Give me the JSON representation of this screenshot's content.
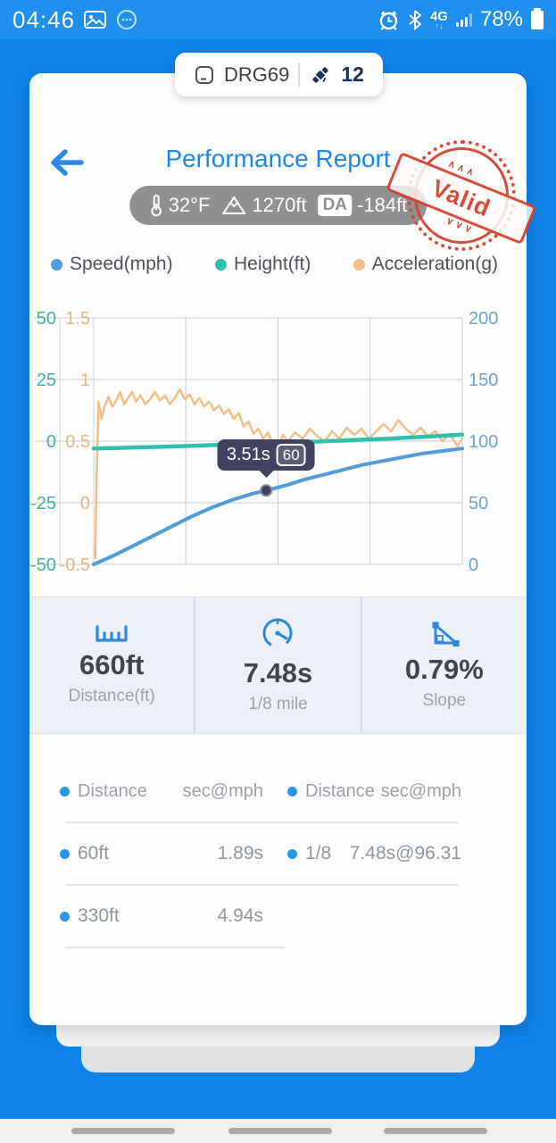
{
  "status_bar": {
    "time": "04:46",
    "network": "4G",
    "battery_percent": "78%",
    "icons": [
      "image-icon",
      "circle-badge-icon",
      "alarm-icon",
      "bluetooth-icon",
      "signal-icon",
      "battery-icon"
    ]
  },
  "tab": {
    "device_id": "DRG69",
    "run_count": "12",
    "icons": [
      "device-icon",
      "satellite-icon"
    ]
  },
  "header": {
    "title": "Performance Report",
    "conditions": {
      "temperature": "32°F",
      "altitude": "1270ft",
      "da_label": "DA",
      "density_altitude": "-184ft"
    },
    "stamp": "Valid"
  },
  "chart_data": {
    "type": "line",
    "x_range": [
      0,
      7.5
    ],
    "grid": true,
    "legend": [
      {
        "label": "Speed(mph)",
        "color": "#4f9bda"
      },
      {
        "label": "Height(ft)",
        "color": "#2fbfae"
      },
      {
        "label": "Acceleration(g)",
        "color": "#f3bd85"
      }
    ],
    "axes": {
      "height": {
        "label_color": "#3fb3a3",
        "ticks": [
          "50",
          "25",
          "0",
          "-25",
          "-50"
        ],
        "range": [
          -50,
          50
        ],
        "side": "left-outer"
      },
      "accel": {
        "label_color": "#e9b57e",
        "ticks": [
          "1.5",
          "1",
          "0.5",
          "0",
          "-0.5"
        ],
        "range": [
          -0.5,
          1.5
        ],
        "side": "left-inner"
      },
      "speed": {
        "label_color": "#6fa3cd",
        "ticks": [
          "200",
          "150",
          "100",
          "50",
          "0"
        ],
        "range": [
          0,
          200
        ],
        "side": "right"
      }
    },
    "series": [
      {
        "name": "Speed(mph)",
        "axis": "speed",
        "color": "#4f9bda",
        "width": 4,
        "points": [
          [
            0,
            0
          ],
          [
            0.4,
            7
          ],
          [
            0.8,
            15
          ],
          [
            1.2,
            23
          ],
          [
            1.6,
            31
          ],
          [
            2.0,
            39
          ],
          [
            2.4,
            46
          ],
          [
            2.8,
            52
          ],
          [
            3.2,
            57
          ],
          [
            3.51,
            60
          ],
          [
            3.9,
            64
          ],
          [
            4.3,
            69
          ],
          [
            4.7,
            73
          ],
          [
            5.1,
            77
          ],
          [
            5.5,
            81
          ],
          [
            5.9,
            84
          ],
          [
            6.3,
            87
          ],
          [
            6.7,
            90
          ],
          [
            7.1,
            92
          ],
          [
            7.5,
            94
          ]
        ]
      },
      {
        "name": "Height(ft)",
        "axis": "height",
        "color": "#2fbfae",
        "width": 4.5,
        "points": [
          [
            0,
            -3
          ],
          [
            1.5,
            -2.2
          ],
          [
            3,
            -1.2
          ],
          [
            4.5,
            -0.2
          ],
          [
            6,
            1
          ],
          [
            7.5,
            2.6
          ]
        ]
      },
      {
        "name": "Acceleration(g)",
        "axis": "accel",
        "color": "#f3bd85",
        "width": 2.5,
        "points": [
          [
            0.03,
            -0.45
          ],
          [
            0.06,
            0.25
          ],
          [
            0.1,
            0.82
          ],
          [
            0.16,
            0.68
          ],
          [
            0.22,
            0.78
          ],
          [
            0.3,
            0.86
          ],
          [
            0.38,
            0.78
          ],
          [
            0.46,
            0.83
          ],
          [
            0.54,
            0.9
          ],
          [
            0.62,
            0.8
          ],
          [
            0.7,
            0.85
          ],
          [
            0.78,
            0.9
          ],
          [
            0.86,
            0.82
          ],
          [
            0.95,
            0.87
          ],
          [
            1.05,
            0.8
          ],
          [
            1.15,
            0.84
          ],
          [
            1.25,
            0.9
          ],
          [
            1.35,
            0.83
          ],
          [
            1.45,
            0.87
          ],
          [
            1.55,
            0.8
          ],
          [
            1.65,
            0.85
          ],
          [
            1.75,
            0.92
          ],
          [
            1.85,
            0.84
          ],
          [
            1.95,
            0.88
          ],
          [
            2.05,
            0.8
          ],
          [
            2.15,
            0.85
          ],
          [
            2.25,
            0.78
          ],
          [
            2.35,
            0.82
          ],
          [
            2.45,
            0.75
          ],
          [
            2.55,
            0.79
          ],
          [
            2.65,
            0.72
          ],
          [
            2.75,
            0.76
          ],
          [
            2.85,
            0.68
          ],
          [
            2.95,
            0.73
          ],
          [
            3.05,
            0.62
          ],
          [
            3.15,
            0.66
          ],
          [
            3.25,
            0.56
          ],
          [
            3.35,
            0.6
          ],
          [
            3.45,
            0.52
          ],
          [
            3.55,
            0.57
          ],
          [
            3.65,
            0.47
          ],
          [
            3.75,
            0.45
          ],
          [
            3.85,
            0.55
          ],
          [
            3.95,
            0.5
          ],
          [
            4.1,
            0.57
          ],
          [
            4.25,
            0.52
          ],
          [
            4.4,
            0.6
          ],
          [
            4.55,
            0.54
          ],
          [
            4.7,
            0.5
          ],
          [
            4.85,
            0.58
          ],
          [
            5.0,
            0.52
          ],
          [
            5.15,
            0.61
          ],
          [
            5.3,
            0.55
          ],
          [
            5.45,
            0.6
          ],
          [
            5.6,
            0.52
          ],
          [
            5.75,
            0.58
          ],
          [
            5.9,
            0.64
          ],
          [
            6.05,
            0.58
          ],
          [
            6.2,
            0.67
          ],
          [
            6.35,
            0.6
          ],
          [
            6.5,
            0.55
          ],
          [
            6.65,
            0.61
          ],
          [
            6.8,
            0.54
          ],
          [
            6.95,
            0.58
          ],
          [
            7.1,
            0.5
          ],
          [
            7.25,
            0.56
          ],
          [
            7.4,
            0.46
          ],
          [
            7.5,
            0.52
          ]
        ]
      }
    ],
    "tooltip": {
      "time_label": "3.51s",
      "value_label": "60",
      "x": 3.51,
      "y": 60,
      "series": "speed"
    }
  },
  "stats": [
    {
      "icon": "ruler-icon",
      "value": "660ft",
      "label": "Distance(ft)"
    },
    {
      "icon": "speedometer-icon",
      "value": "7.48s",
      "label": "1/8 mile"
    },
    {
      "icon": "slope-icon",
      "value": "0.79%",
      "label": "Slope"
    }
  ],
  "table": {
    "headers": [
      {
        "label": "Distance"
      },
      {
        "label": "sec@mph"
      },
      {
        "label": "Distance"
      },
      {
        "label": "sec@mph"
      }
    ],
    "rows": [
      {
        "left": {
          "label": "60ft",
          "value": "1.89s"
        },
        "right": {
          "label": "1/8",
          "value": "7.48s@96.31"
        }
      },
      {
        "left": {
          "label": "330ft",
          "value": "4.94s"
        },
        "right": null
      }
    ]
  },
  "colors": {
    "app_background": "#0f82e9",
    "accent_blue": "#1e88ea",
    "stamp_red": "#d8432d",
    "pill_gray": "#8f9092",
    "stat_icon_blue": "#2b87e2",
    "tooltip_bg": "#3f4361"
  }
}
